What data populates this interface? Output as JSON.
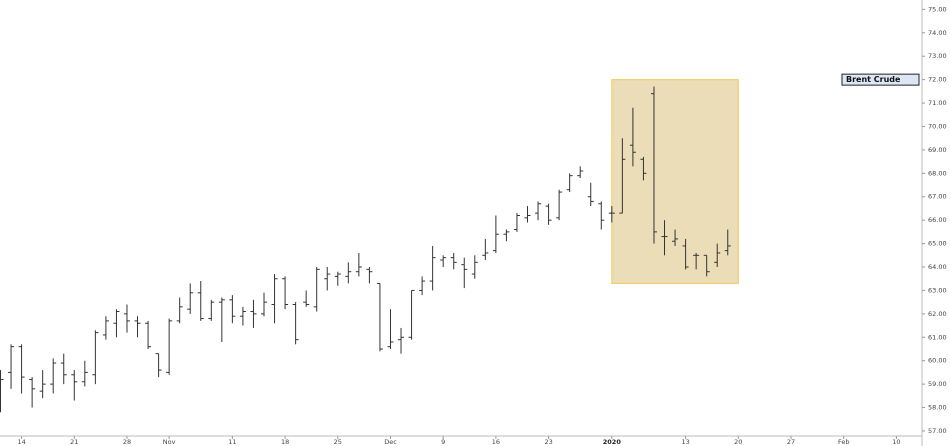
{
  "chart_data": {
    "type": "ohlc",
    "categories": [
      null,
      null,
      "14",
      null,
      null,
      null,
      null,
      "21",
      null,
      null,
      null,
      null,
      "28",
      null,
      null,
      null,
      "Nov",
      null,
      null,
      null,
      null,
      null,
      "11",
      null,
      null,
      null,
      null,
      "18",
      null,
      null,
      null,
      null,
      "25",
      null,
      null,
      null,
      null,
      "Dec",
      null,
      null,
      null,
      null,
      "9",
      null,
      null,
      null,
      null,
      "16",
      null,
      null,
      null,
      null,
      "23",
      null,
      null,
      null,
      null,
      null,
      "2020",
      null,
      null,
      null,
      null,
      null,
      null,
      "13",
      null,
      null,
      null,
      null,
      "20",
      null,
      null,
      null,
      null,
      "27",
      null,
      null,
      null,
      null,
      "Feb",
      null,
      null,
      null,
      null,
      "10"
    ],
    "series": [
      {
        "name": "Brent Crude",
        "color": "#333333",
        "open": [
          59.5,
          59.5,
          60.6,
          59.2,
          58.7,
          59.0,
          59.9,
          59.4,
          59.1,
          59.4,
          61.1,
          61.6,
          62.0,
          61.7,
          61.6,
          60.3,
          59.5,
          61.7,
          62.2,
          62.9,
          61.8,
          62.5,
          62.6,
          61.9,
          62.1,
          62.0,
          62.4,
          63.5,
          62.4,
          62.5,
          62.3,
          63.5,
          63.6,
          63.6,
          63.8,
          63.9,
          63.3,
          60.6,
          60.9,
          61.0,
          63.0,
          63.4,
          64.3,
          64.4,
          64.1,
          63.7,
          64.5,
          64.7,
          65.4,
          65.6,
          66.1,
          66.3,
          66.6,
          66.1,
          67.3,
          67.9,
          67.0,
          66.7,
          66.3,
          66.3,
          69.2,
          68.6,
          71.4,
          65.3,
          65.1,
          64.9,
          64.5,
          64.5,
          64.2,
          64.7,
          null,
          null,
          null,
          null,
          null,
          null,
          null,
          null,
          null,
          null,
          null,
          null,
          null,
          null,
          null,
          null
        ],
        "high": [
          59.6,
          60.7,
          60.7,
          59.3,
          59.6,
          60.1,
          60.3,
          59.6,
          60.0,
          61.3,
          61.9,
          62.2,
          62.4,
          61.9,
          61.7,
          60.3,
          61.8,
          62.7,
          63.3,
          63.4,
          62.6,
          62.7,
          62.8,
          62.3,
          62.6,
          62.9,
          63.7,
          63.6,
          62.5,
          63.0,
          64.0,
          64.0,
          63.8,
          64.2,
          64.6,
          64.0,
          63.3,
          62.2,
          61.4,
          63.0,
          63.6,
          64.9,
          64.5,
          64.6,
          64.4,
          64.5,
          65.2,
          66.2,
          65.6,
          66.3,
          66.6,
          66.8,
          66.7,
          67.3,
          68.0,
          68.3,
          67.6,
          66.8,
          66.6,
          69.5,
          70.8,
          68.7,
          71.7,
          66.0,
          65.6,
          65.2,
          64.6,
          64.5,
          65.0,
          65.6,
          null,
          null,
          null,
          null,
          null,
          null,
          null,
          null,
          null,
          null,
          null,
          null,
          null,
          null,
          null,
          null
        ],
        "low": [
          57.8,
          58.8,
          58.6,
          58.0,
          58.4,
          58.6,
          59.0,
          58.3,
          58.9,
          59.0,
          60.9,
          61.0,
          61.2,
          61.0,
          60.5,
          59.3,
          59.4,
          61.6,
          62.0,
          61.7,
          61.7,
          60.8,
          61.6,
          61.5,
          61.4,
          61.9,
          61.6,
          62.2,
          60.7,
          62.3,
          62.1,
          63.0,
          63.2,
          63.3,
          63.6,
          63.3,
          60.4,
          60.5,
          60.3,
          60.9,
          62.8,
          63.0,
          64.0,
          63.9,
          63.1,
          63.5,
          64.3,
          64.6,
          65.1,
          65.5,
          65.9,
          66.0,
          65.8,
          66.0,
          67.2,
          67.8,
          66.6,
          65.6,
          65.9,
          66.3,
          68.3,
          67.7,
          65.0,
          64.5,
          64.9,
          63.9,
          63.9,
          63.6,
          64.0,
          64.5,
          null,
          null,
          null,
          null,
          null,
          null,
          null,
          null,
          null,
          null,
          null,
          null,
          null,
          null,
          null,
          null
        ],
        "close": [
          59.2,
          60.6,
          59.3,
          58.8,
          59.0,
          59.9,
          59.4,
          59.1,
          59.5,
          61.2,
          61.7,
          62.1,
          61.7,
          61.6,
          60.6,
          59.6,
          61.7,
          62.3,
          62.9,
          61.8,
          62.5,
          62.6,
          61.9,
          62.1,
          62.0,
          62.5,
          63.5,
          62.4,
          60.9,
          62.4,
          63.9,
          63.7,
          63.7,
          63.8,
          64.0,
          63.8,
          60.5,
          60.8,
          61.0,
          63.0,
          63.4,
          64.4,
          64.4,
          64.2,
          63.9,
          64.2,
          64.6,
          65.4,
          65.5,
          66.2,
          66.2,
          66.7,
          66.0,
          67.2,
          67.9,
          68.1,
          66.8,
          66.0,
          66.3,
          68.6,
          68.9,
          68.0,
          65.5,
          65.3,
          65.2,
          64.0,
          64.5,
          63.8,
          64.6,
          64.9,
          null,
          null,
          null,
          null,
          null,
          null,
          null,
          null,
          null,
          null,
          null,
          null,
          null,
          null,
          null,
          null
        ]
      }
    ],
    "ylim": [
      56.7,
      75.4
    ],
    "yticks": [
      {
        "value": 57,
        "label": "57.00"
      },
      {
        "value": 58,
        "label": "58.00"
      },
      {
        "value": 59,
        "label": "59.00"
      },
      {
        "value": 60,
        "label": "60.00"
      },
      {
        "value": 61,
        "label": "61.00"
      },
      {
        "value": 62,
        "label": "62.00"
      },
      {
        "value": 63,
        "label": "63.00"
      },
      {
        "value": 64,
        "label": "64.00"
      },
      {
        "value": 65,
        "label": "65.00"
      },
      {
        "value": 66,
        "label": "66.00"
      },
      {
        "value": 67,
        "label": "67.00"
      },
      {
        "value": 68,
        "label": "68.00"
      },
      {
        "value": 69,
        "label": "69.00"
      },
      {
        "value": 70,
        "label": "70.00"
      },
      {
        "value": 71,
        "label": "71.00"
      },
      {
        "value": 72,
        "label": "72.00"
      },
      {
        "value": 73,
        "label": "73.00"
      },
      {
        "value": 74,
        "label": "74.00"
      },
      {
        "value": 75,
        "label": "75.00"
      }
    ],
    "highlight": {
      "x": [
        58,
        70
      ],
      "y": [
        63.3,
        72.0
      ],
      "color": "#e8d9b0",
      "border": "#f2cf6a"
    },
    "legend_value": 72.0
  }
}
